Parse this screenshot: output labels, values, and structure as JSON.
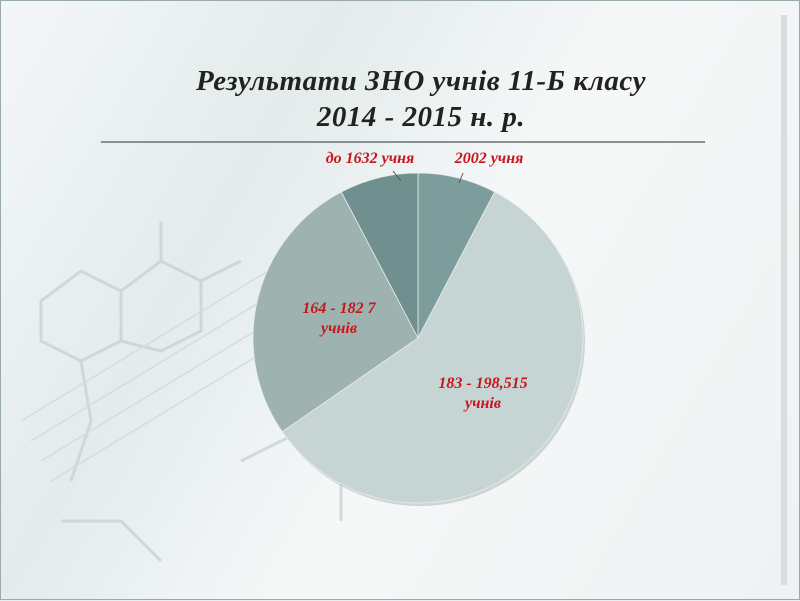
{
  "chart_data": {
    "type": "pie",
    "title": "Результати  ЗНО учнів 11-Б класу",
    "subtitle": "2014 - 2015 н. р.",
    "start": "top",
    "direction": "clockwise",
    "slices": [
      {
        "label": "2002 учня",
        "label_lines": [
          "2002 учня"
        ],
        "value": 2,
        "color": "#7c9d9b"
      },
      {
        "label": "183 - 198,515 учнів",
        "label_lines": [
          "183 - 198,515",
          "учнів"
        ],
        "value": 15,
        "color": "#c6d4d4"
      },
      {
        "label": "164 - 182 7 учнів",
        "label_lines": [
          "164 - 182 7",
          "учнів"
        ],
        "value": 7,
        "color": "#9eb2b0"
      },
      {
        "label": "до 1632 учня",
        "label_lines": [
          "до 1632 учня"
        ],
        "value": 2,
        "color": "#6f908f"
      }
    ],
    "label_color": "#c8161d"
  }
}
